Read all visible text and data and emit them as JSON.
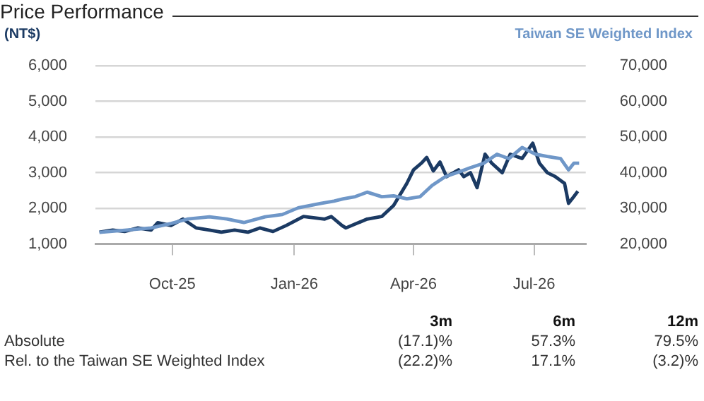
{
  "chart_data": {
    "type": "line",
    "title": "Price Performance",
    "ylabel": "(NT$)",
    "xlim": [
      "2025-08-04",
      "2026-08-09"
    ],
    "xticks": [
      {
        "value": "2025-10-01",
        "label": "Oct-25"
      },
      {
        "value": "2026-01-01",
        "label": "Jan-26"
      },
      {
        "value": "2026-04-01",
        "label": "Apr-26"
      },
      {
        "value": "2026-07-01",
        "label": "Jul-26"
      }
    ],
    "ylim": [
      1000,
      6000
    ],
    "yticks": [
      {
        "value": 1000,
        "label": "1,000"
      },
      {
        "value": 2000,
        "label": "2,000"
      },
      {
        "value": 3000,
        "label": "3,000"
      },
      {
        "value": 4000,
        "label": "4,000"
      },
      {
        "value": 5000,
        "label": "5,000"
      },
      {
        "value": 6000,
        "label": "6,000"
      }
    ],
    "y2lim": [
      20000,
      70000
    ],
    "y2ticks": [
      {
        "value": 20000,
        "label": "20,000"
      },
      {
        "value": 30000,
        "label": "30,000"
      },
      {
        "value": 40000,
        "label": "40,000"
      },
      {
        "value": 50000,
        "label": "50,000"
      },
      {
        "value": 60000,
        "label": "60,000"
      },
      {
        "value": 70000,
        "label": "70,000"
      }
    ],
    "grid": "y",
    "legend": "top right",
    "marker": "none",
    "line_style": "solid",
    "series": [
      {
        "color": "#6f97c8",
        "name": "Taiwan SE Weighted Index",
        "axis": "y2",
        "x": [
          "2025-08-07",
          "2025-08-26",
          "2025-09-15",
          "2025-09-30",
          "2025-10-13",
          "2025-10-29",
          "2025-11-11",
          "2025-11-24",
          "2025-12-10",
          "2025-12-23",
          "2026-01-04",
          "2026-01-21",
          "2026-01-31",
          "2026-02-07",
          "2026-02-16",
          "2026-02-25",
          "2026-03-08",
          "2026-03-17",
          "2026-03-27",
          "2026-04-06",
          "2026-04-15",
          "2026-04-25",
          "2026-05-05",
          "2026-05-14",
          "2026-05-24",
          "2026-06-03",
          "2026-06-12",
          "2026-06-22",
          "2026-07-02",
          "2026-07-11",
          "2026-07-21",
          "2026-07-27",
          "2026-07-31",
          "2026-08-04"
        ],
        "values": [
          23270,
          23870,
          24510,
          25750,
          27030,
          27630,
          27030,
          26020,
          27630,
          28270,
          30150,
          31390,
          32030,
          32670,
          33270,
          34550,
          33270,
          33500,
          32670,
          33270,
          36430,
          38900,
          40190,
          41430,
          42670,
          45190,
          43950,
          47070,
          45190,
          44550,
          43950,
          40790,
          42670,
          42670
        ]
      },
      {
        "color": "#1b3a63",
        "axis": "y",
        "x": [
          "2025-08-07",
          "2025-08-17",
          "2025-08-26",
          "2025-09-05",
          "2025-09-15",
          "2025-09-20",
          "2025-09-30",
          "2025-10-09",
          "2025-10-19",
          "2025-10-29",
          "2025-11-07",
          "2025-11-17",
          "2025-11-27",
          "2025-12-06",
          "2025-12-16",
          "2025-12-26",
          "2026-01-08",
          "2026-01-24",
          "2026-01-29",
          "2026-02-06",
          "2026-02-09",
          "2026-02-25",
          "2026-03-08",
          "2026-03-17",
          "2026-03-27",
          "2026-04-01",
          "2026-04-07",
          "2026-04-11",
          "2026-04-16",
          "2026-04-21",
          "2026-04-26",
          "2026-05-05",
          "2026-05-09",
          "2026-05-14",
          "2026-05-19",
          "2026-05-25",
          "2026-05-30",
          "2026-06-07",
          "2026-06-13",
          "2026-06-22",
          "2026-06-30",
          "2026-07-05",
          "2026-07-11",
          "2026-07-17",
          "2026-07-24",
          "2026-07-27",
          "2026-07-31",
          "2026-08-03"
        ],
        "values": [
          1330,
          1390,
          1350,
          1450,
          1390,
          1600,
          1520,
          1700,
          1450,
          1390,
          1330,
          1390,
          1330,
          1450,
          1350,
          1520,
          1770,
          1700,
          1770,
          1520,
          1450,
          1700,
          1770,
          2080,
          2700,
          3080,
          3270,
          3430,
          3050,
          3300,
          2890,
          3080,
          2890,
          3000,
          2580,
          3520,
          3270,
          3000,
          3520,
          3400,
          3830,
          3270,
          3000,
          2890,
          2700,
          2140,
          2330,
          2480
        ]
      }
    ],
    "annotations": [
      "3m",
      "6m",
      "12m",
      "Absolute",
      "(17.1)%",
      "57.3%",
      "79.5%",
      "Rel. to the Taiwan SE Weighted Index",
      "(22.2)%",
      "17.1%",
      "(3.2)%"
    ]
  }
}
